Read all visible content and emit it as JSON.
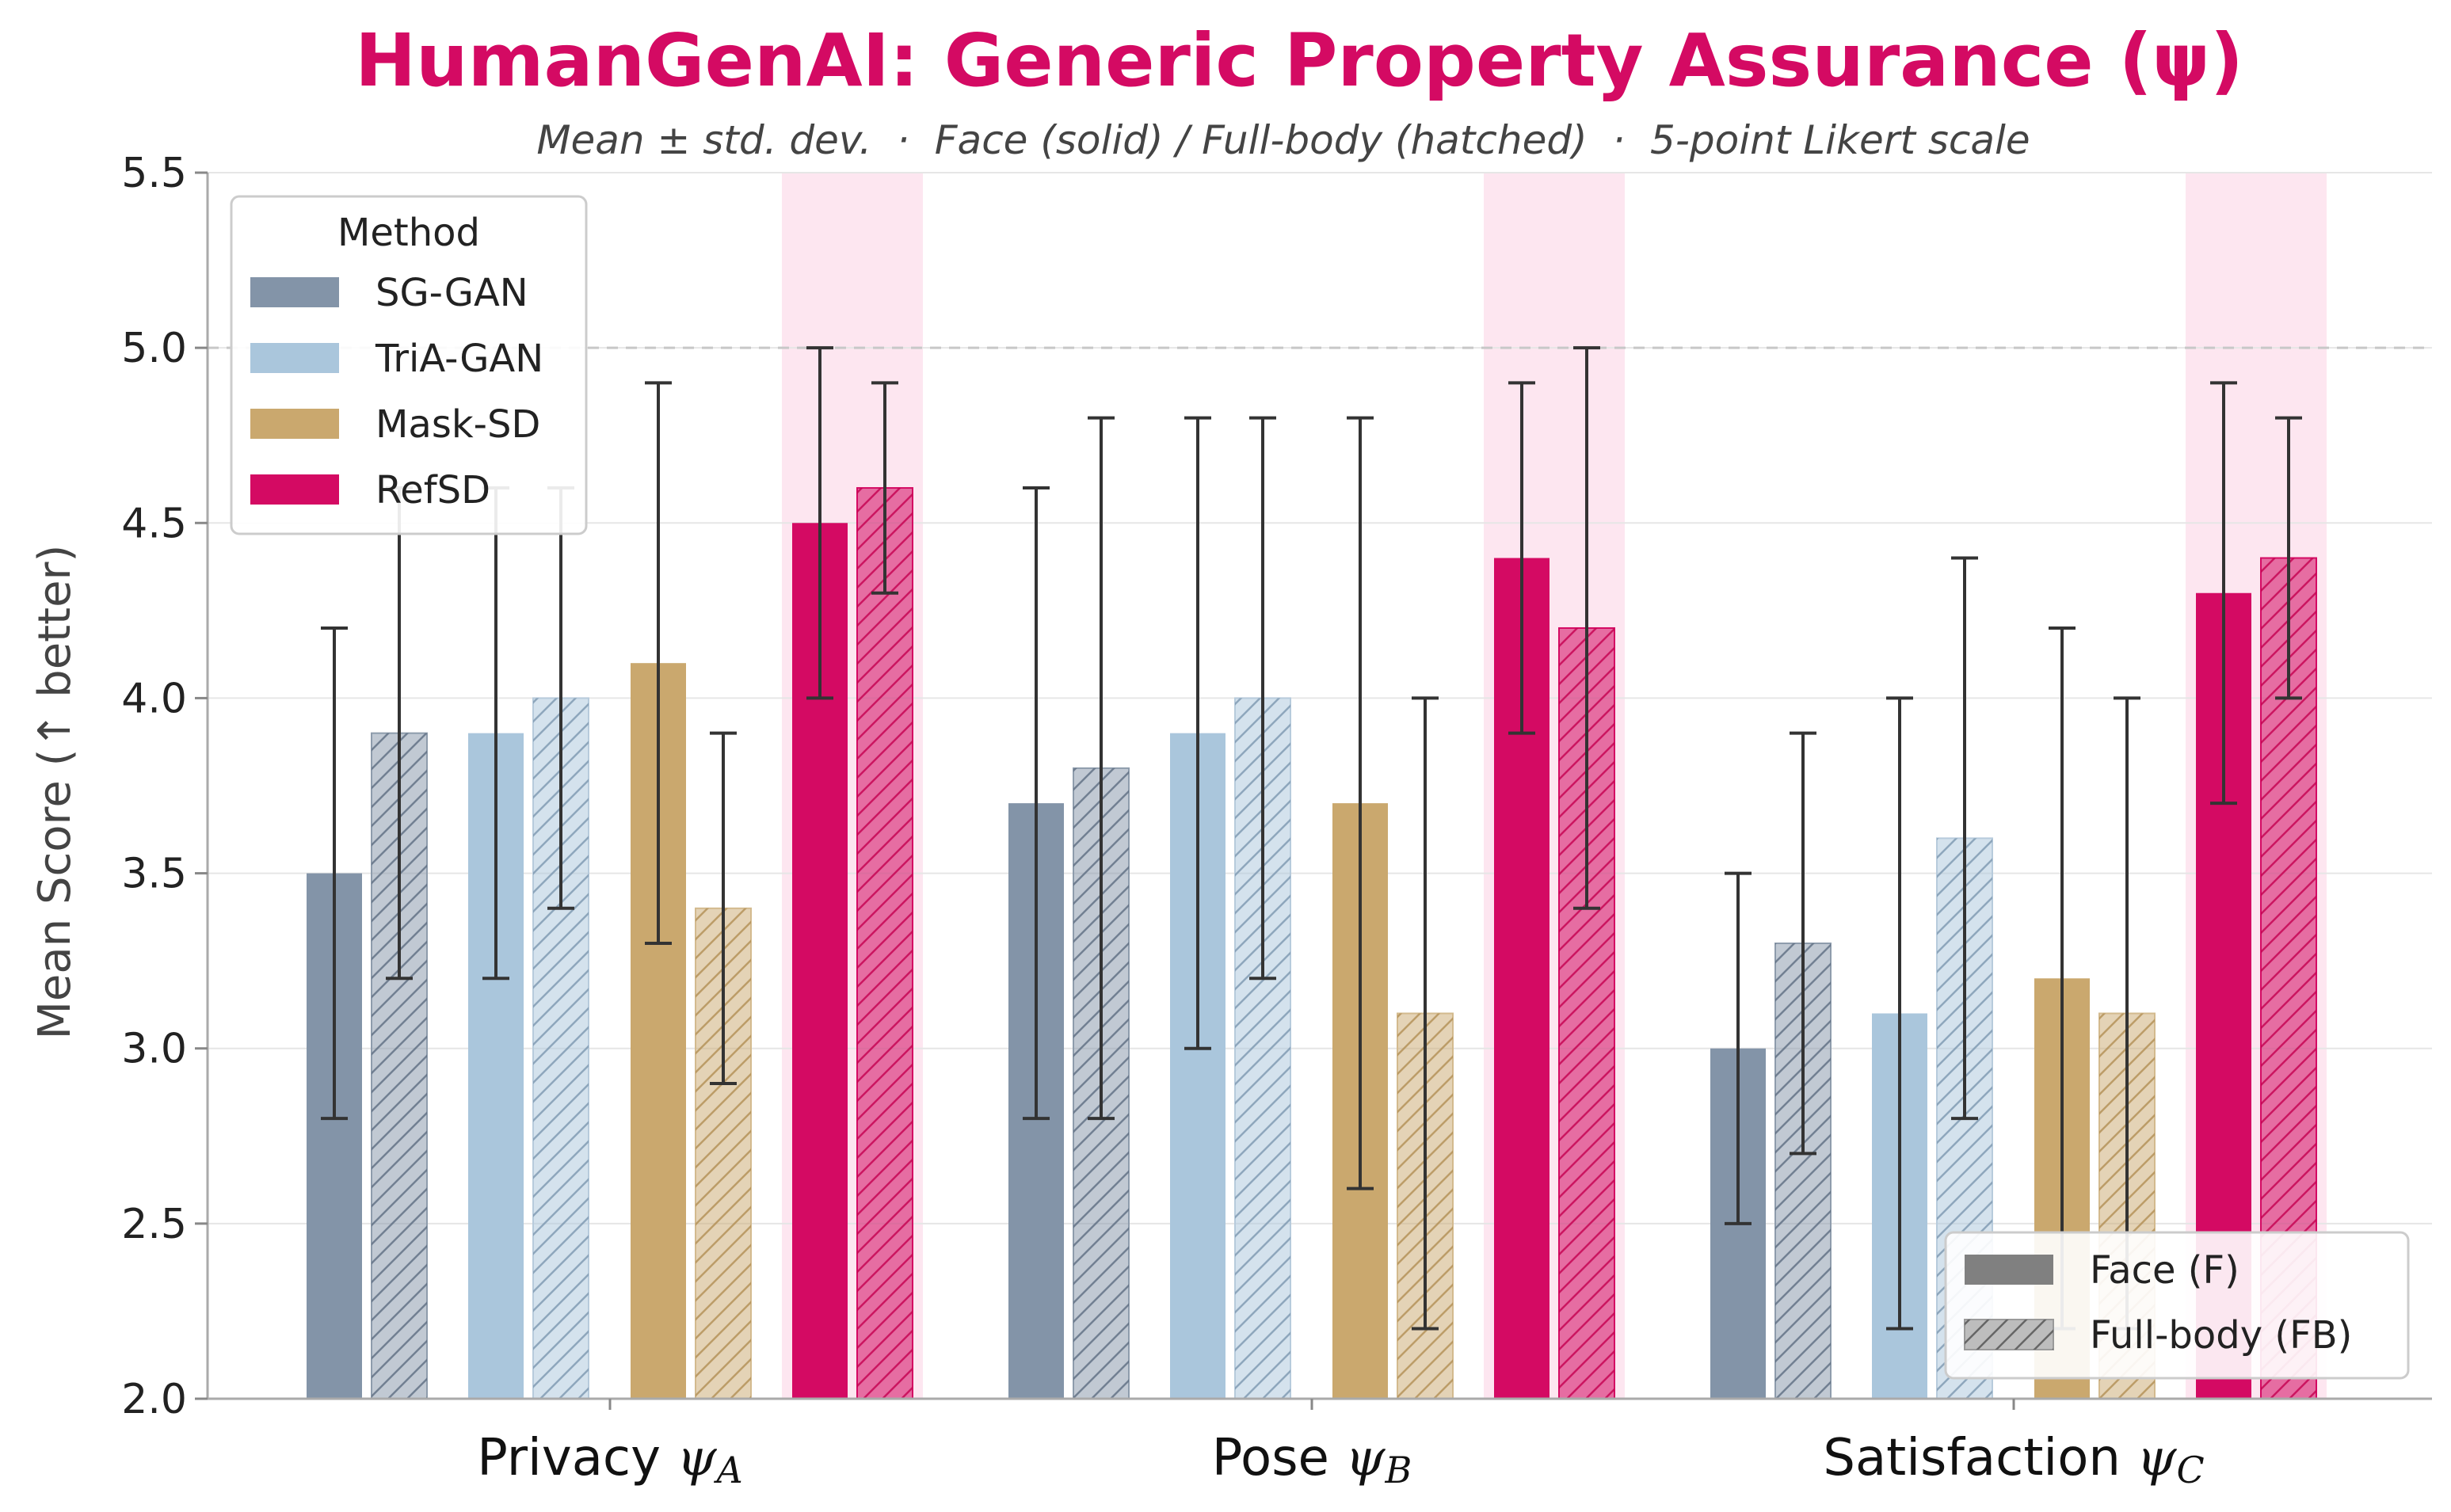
{
  "chart_data": {
    "type": "bar",
    "title": "HumanGenAI: Generic Property Assurance (ψ)",
    "subtitle": "Mean ± std. dev.  ·  Face (solid) / Full-body (hatched)  ·  5-point Likert scale",
    "ylabel": "Mean Score (↑ better)",
    "ylim": [
      2.0,
      5.5
    ],
    "yticks": [
      "2.0",
      "2.5",
      "3.0",
      "3.5",
      "4.0",
      "4.5",
      "5.0",
      "5.5"
    ],
    "reference_line": 5.0,
    "categories": [
      {
        "label": "Privacy",
        "symbol": "ψ",
        "sub": "A"
      },
      {
        "label": "Pose",
        "symbol": "ψ",
        "sub": "B"
      },
      {
        "label": "Satisfaction",
        "symbol": "ψ",
        "sub": "C"
      }
    ],
    "highlighted_method": "RefSD",
    "series": [
      {
        "name": "SG-GAN",
        "color": "#8394a8",
        "face": {
          "mean": [
            3.5,
            3.7,
            3.0
          ],
          "std": [
            0.7,
            0.9,
            0.5
          ]
        },
        "fullbody": {
          "mean": [
            3.9,
            3.8,
            3.3
          ],
          "std": [
            0.7,
            1.0,
            0.6
          ]
        }
      },
      {
        "name": "TriA-GAN",
        "color": "#aac6dc",
        "face": {
          "mean": [
            3.9,
            3.9,
            3.1
          ],
          "std": [
            0.7,
            0.9,
            0.9
          ]
        },
        "fullbody": {
          "mean": [
            4.0,
            4.0,
            3.6
          ],
          "std": [
            0.6,
            0.8,
            0.8
          ]
        }
      },
      {
        "name": "Mask-SD",
        "color": "#caa86e",
        "face": {
          "mean": [
            4.1,
            3.7,
            3.2
          ],
          "std": [
            0.8,
            1.1,
            1.0
          ]
        },
        "fullbody": {
          "mean": [
            3.4,
            3.1,
            3.1
          ],
          "std": [
            0.5,
            0.9,
            0.9
          ]
        }
      },
      {
        "name": "RefSD",
        "color": "#d40a63",
        "face": {
          "mean": [
            4.5,
            4.4,
            4.3
          ],
          "std": [
            0.5,
            0.5,
            0.6
          ]
        },
        "fullbody": {
          "mean": [
            4.6,
            4.2,
            4.4
          ],
          "std": [
            0.3,
            0.8,
            0.4
          ]
        }
      }
    ],
    "legend_methods": {
      "title": "Method",
      "position": "top-left"
    },
    "legend_types": {
      "position": "bottom-right",
      "entries": [
        "Face (F)",
        "Full-body (FB)"
      ]
    }
  }
}
